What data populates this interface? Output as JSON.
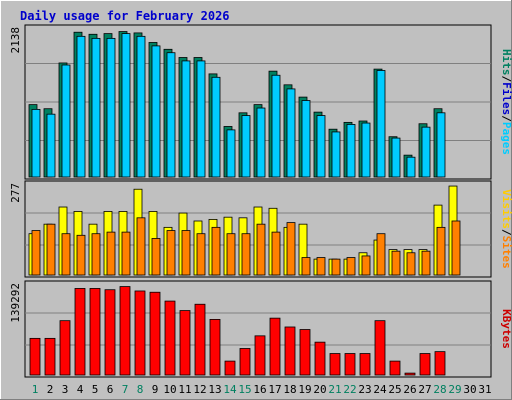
{
  "chart_data": {
    "type": "bar",
    "title": "Daily usage for February 2026",
    "days": [
      "1",
      "2",
      "3",
      "4",
      "5",
      "6",
      "7",
      "8",
      "9",
      "10",
      "11",
      "12",
      "13",
      "14",
      "15",
      "16",
      "17",
      "18",
      "19",
      "20",
      "21",
      "22",
      "23",
      "24",
      "25",
      "26",
      "27",
      "28",
      "29",
      "30",
      "31"
    ],
    "weekend_days": [
      "1",
      "7",
      "8",
      "14",
      "15",
      "21",
      "22",
      "28",
      "29"
    ],
    "panels": [
      {
        "ymax_label": "2138",
        "ymax": 2138,
        "side_label": [
          "Pages",
          "/",
          "Files",
          "/",
          "Hits"
        ],
        "side_colors": [
          "#00ccff",
          "#000000",
          "#0000cc",
          "#000000",
          "#008060"
        ],
        "series": [
          {
            "name": "Hits",
            "color": "#008060",
            "values": [
              1060,
              1000,
              1670,
              2120,
              2090,
              2100,
              2130,
              2110,
              1970,
              1870,
              1750,
              1750,
              1510,
              740,
              940,
              1060,
              1550,
              1350,
              1170,
              950,
              700,
              800,
              820,
              1580,
              590,
              320,
              780,
              1000,
              0,
              0,
              0
            ]
          },
          {
            "name": "Files",
            "color": "#00ccff",
            "values": [
              990,
              920,
              1640,
              2060,
              2030,
              2030,
              2100,
              2060,
              1920,
              1820,
              1700,
              1700,
              1460,
              690,
              900,
              1010,
              1490,
              1290,
              1120,
              900,
              660,
              770,
              790,
              1560,
              570,
              290,
              730,
              940,
              0,
              0,
              0
            ]
          }
        ]
      },
      {
        "ymax_label": "277",
        "ymax": 277,
        "side_label": [
          "Sites",
          "/",
          "Visits"
        ],
        "side_colors": [
          "#ff8000",
          "#000000",
          "#ffcc00"
        ],
        "series": [
          {
            "name": "Visits",
            "color": "#ffff00",
            "values": [
              130,
              160,
              214,
              200,
              160,
              200,
              200,
              270,
              200,
              150,
              195,
              170,
              175,
              182,
              180,
              214,
              210,
              150,
              160,
              50,
              50,
              50,
              70,
              110,
              80,
              80,
              80,
              220,
              280,
              0,
              0
            ]
          },
          {
            "name": "Sites",
            "color": "#ff8000",
            "values": [
              140,
              160,
              130,
              125,
              130,
              135,
              135,
              180,
              115,
              140,
              140,
              130,
              150,
              130,
              130,
              160,
              135,
              165,
              55,
              55,
              50,
              55,
              60,
              130,
              75,
              70,
              75,
              150,
              170,
              0,
              0
            ]
          }
        ]
      },
      {
        "ymax_label": "139292",
        "ymax": 139292,
        "side_label": [
          "KBytes"
        ],
        "side_colors": [
          "#cc0000"
        ],
        "series": [
          {
            "name": "KBytes",
            "color": "#ff0000",
            "values": [
              58000,
              58000,
              86000,
              137000,
              137000,
              135000,
              140000,
              133000,
              131000,
              117000,
              102000,
              112000,
              88000,
              22000,
              42000,
              62000,
              90000,
              76000,
              72000,
              52000,
              34000,
              34000,
              34000,
              86000,
              22000,
              3000,
              34000,
              37000,
              0,
              0,
              0
            ]
          }
        ]
      }
    ]
  }
}
